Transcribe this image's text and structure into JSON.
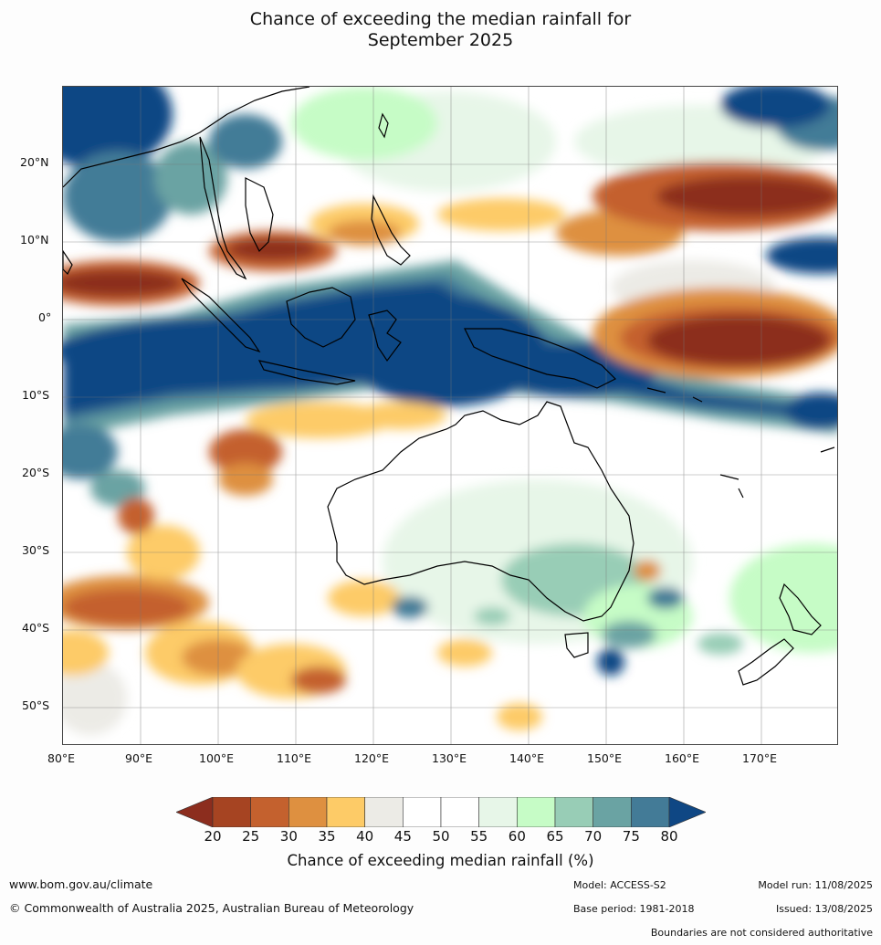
{
  "title": {
    "line1": "Chance of exceeding the median rainfall for",
    "line2": "September 2025"
  },
  "map": {
    "lat_labels": [
      "20°N",
      "10°N",
      "0°",
      "10°S",
      "20°S",
      "30°S",
      "40°S",
      "50°S"
    ],
    "lon_labels": [
      "80°E",
      "90°E",
      "100°E",
      "110°E",
      "120°E",
      "130°E",
      "140°E",
      "150°E",
      "160°E",
      "170°E"
    ],
    "lon_range": [
      80,
      180
    ],
    "lat_range": [
      -55,
      30
    ],
    "gridlines": true
  },
  "legend": {
    "title": "Chance of exceeding median rainfall (%)",
    "ticks": [
      "20",
      "25",
      "30",
      "35",
      "40",
      "45",
      "50",
      "55",
      "60",
      "65",
      "70",
      "75",
      "80"
    ],
    "colors": [
      "#8c2d1e",
      "#a64422",
      "#c4612e",
      "#de9040",
      "#fdcb67",
      "#ecebe6",
      "#ffffff",
      "#ffffff",
      "#e7f6e8",
      "#c6fcc6",
      "#98cdb6",
      "#6aa3a3",
      "#437b97",
      "#0f4784"
    ]
  },
  "footer": {
    "website": "www.bom.gov.au/climate",
    "copyright": "© Commonwealth of Australia 2025, Australian Bureau of Meteorology",
    "model": "Model: ACCESS-S2",
    "base_period": "Base period: 1981-2018",
    "model_run": "Model run: 11/08/2025",
    "issued": "Issued: 13/08/2025",
    "disclaimer": "Boundaries are not considered authoritative"
  }
}
